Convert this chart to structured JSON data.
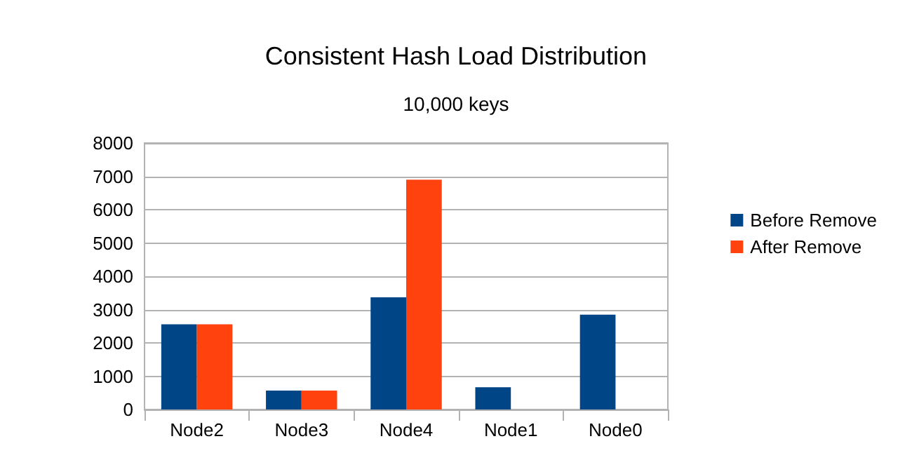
{
  "chart_data": {
    "type": "bar",
    "title": "Consistent Hash Load Distribution",
    "subtitle": "10,000 keys",
    "categories": [
      "Node2",
      "Node3",
      "Node4",
      "Node1",
      "Node0"
    ],
    "series": [
      {
        "name": "Before Remove",
        "color": "#004586",
        "values": [
          2560,
          570,
          3370,
          670,
          2850
        ]
      },
      {
        "name": "After Remove",
        "color": "#ff420e",
        "values": [
          2560,
          570,
          6900,
          0,
          0
        ]
      }
    ],
    "ylim": [
      0,
      8000
    ],
    "yticks": [
      0,
      1000,
      2000,
      3000,
      4000,
      5000,
      6000,
      7000,
      8000
    ],
    "grid": "y",
    "legend": "right"
  }
}
